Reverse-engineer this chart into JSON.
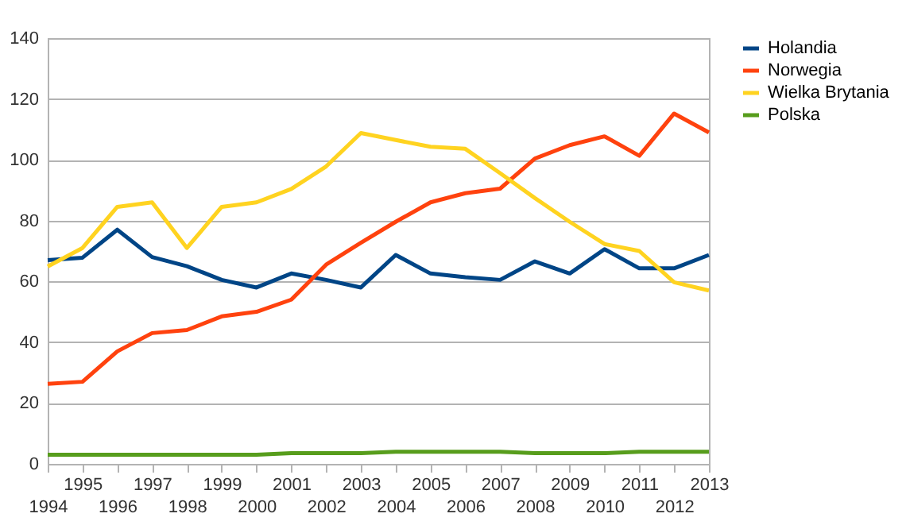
{
  "chart_data": {
    "type": "line",
    "categories": [
      "1994",
      "1995",
      "1996",
      "1997",
      "1998",
      "1999",
      "2000",
      "2001",
      "2002",
      "2003",
      "2004",
      "2005",
      "2006",
      "2007",
      "2008",
      "2009",
      "2010",
      "2011",
      "2012",
      "2013"
    ],
    "series": [
      {
        "name": "Holandia",
        "color": "#004586",
        "values": [
          67,
          67.8,
          77,
          68,
          65,
          60.5,
          58,
          62.6,
          60.5,
          58,
          68.7,
          62.6,
          61.4,
          60.5,
          66.6,
          62.6,
          70.6,
          64.3,
          64.3,
          68.7
        ]
      },
      {
        "name": "Norwegia",
        "color": "#ff420e",
        "values": [
          26.3,
          27,
          37,
          43,
          44,
          48.5,
          50,
          54,
          65.5,
          72.7,
          79.6,
          86,
          89,
          90.5,
          100.4,
          104.8,
          107.7,
          101.3,
          115.2,
          109
        ]
      },
      {
        "name": "Wielka Brytania",
        "color": "#ffd320",
        "values": [
          64.9,
          71,
          84.5,
          86,
          71,
          84.5,
          86,
          90.4,
          97.8,
          108.8,
          106.5,
          104.3,
          103.6,
          95.6,
          87.4,
          79.6,
          72.3,
          70,
          59.7,
          57
        ]
      },
      {
        "name": "Polska",
        "color": "#579d1c",
        "values": [
          3,
          3,
          3,
          3,
          3,
          3,
          3,
          3.5,
          3.5,
          3.5,
          4,
          4,
          4,
          4,
          3.5,
          3.5,
          3.5,
          4,
          4,
          4
        ]
      }
    ],
    "ylim": [
      0,
      140
    ],
    "yticks": [
      0,
      20,
      40,
      60,
      80,
      100,
      120,
      140
    ],
    "grid": "y",
    "legend": "right",
    "marker": "none",
    "line_style": "solid"
  }
}
